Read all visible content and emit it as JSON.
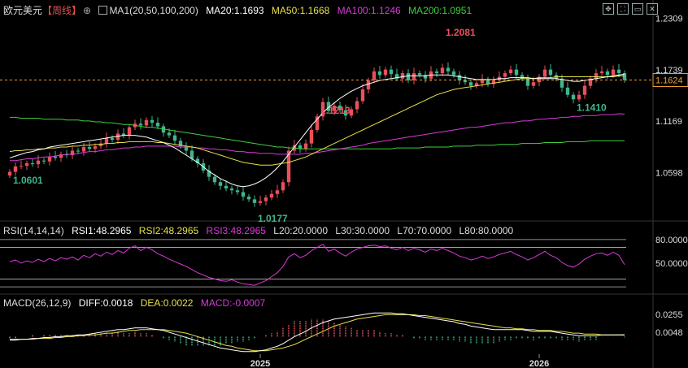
{
  "header": {
    "symbol": "欧元美元",
    "period": "【周线】",
    "ma_indicator": "MA1(20,50,100,200)",
    "ma20": "MA20:1.1693",
    "ma50": "MA50:1.1668",
    "ma100": "MA100:1.1246",
    "ma200": "MA200:1.0951"
  },
  "rsi_header": {
    "name": "RSI(14,14,14)",
    "rsi1": "RSI1:48.2965",
    "rsi2": "RSI2:48.2965",
    "rsi3": "RSI3:48.2965",
    "l20": "L20:20.0000",
    "l30": "L30:30.0000",
    "l70": "L70:70.0000",
    "l80": "L80:80.0000"
  },
  "macd_header": {
    "name": "MACD(26,12,9)",
    "diff": "DIFF:0.0018",
    "dea": "DEA:0.0022",
    "macd": "MACD:-0.0007"
  },
  "colors": {
    "up": "#e8505b",
    "down": "#3fb68b",
    "ma20": "#ffffff",
    "ma50": "#e6e04a",
    "ma100": "#d93ad9",
    "ma200": "#3ecf3e",
    "rsi": "#d93ad9",
    "diff": "#ffffff",
    "dea": "#e6e04a",
    "current_price": "#f0a030"
  },
  "chart_data": [
    {
      "type": "candlestick",
      "title": "欧元美元【周线】",
      "y_ticks": [
        1.2309,
        1.1739,
        1.1169,
        1.0598
      ],
      "ylim": [
        1.015,
        1.235
      ],
      "x_ticks": [
        "2025",
        "2026"
      ],
      "current_price": 1.1624,
      "annotations": [
        {
          "text": "1.2081",
          "value": 1.2081,
          "kind": "high"
        },
        {
          "text": "1.1213",
          "value": 1.1213,
          "kind": "high"
        },
        {
          "text": "1.1410",
          "value": 1.141,
          "kind": "low"
        },
        {
          "text": "1.0601",
          "value": 1.0601,
          "kind": "low"
        },
        {
          "text": "1.0177",
          "value": 1.0177,
          "kind": "low"
        }
      ],
      "close": [
        1.0605,
        1.0665,
        1.0672,
        1.07,
        1.069,
        1.073,
        1.072,
        1.0775,
        1.076,
        1.08,
        1.079,
        1.084,
        1.083,
        1.088,
        1.086,
        1.089,
        1.092,
        1.098,
        1.096,
        1.103,
        1.101,
        1.11,
        1.114,
        1.112,
        1.118,
        1.115,
        1.111,
        1.104,
        1.101,
        1.095,
        1.089,
        1.084,
        1.075,
        1.07,
        1.062,
        1.055,
        1.049,
        1.045,
        1.042,
        1.04,
        1.038,
        1.033,
        1.03,
        1.026,
        1.028,
        1.032,
        1.036,
        1.04,
        1.049,
        1.084,
        1.09,
        1.086,
        1.092,
        1.107,
        1.122,
        1.138,
        1.128,
        1.134,
        1.129,
        1.123,
        1.13,
        1.139,
        1.152,
        1.162,
        1.172,
        1.168,
        1.174,
        1.169,
        1.164,
        1.17,
        1.162,
        1.17,
        1.168,
        1.164,
        1.172,
        1.17,
        1.176,
        1.172,
        1.168,
        1.162,
        1.16,
        1.156,
        1.159,
        1.163,
        1.158,
        1.162,
        1.166,
        1.17,
        1.174,
        1.168,
        1.164,
        1.156,
        1.16,
        1.166,
        1.174,
        1.168,
        1.164,
        1.154,
        1.146,
        1.141,
        1.146,
        1.156,
        1.164,
        1.17,
        1.172,
        1.168,
        1.174,
        1.17,
        1.1624
      ],
      "ma20": [
        1.076,
        1.078,
        1.08,
        1.082,
        1.083,
        1.085,
        1.086,
        1.088,
        1.089,
        1.09,
        1.091,
        1.092,
        1.093,
        1.094,
        1.095,
        1.096,
        1.097,
        1.098,
        1.099,
        1.1,
        1.101,
        1.101,
        1.101,
        1.1,
        1.099,
        1.097,
        1.095,
        1.093,
        1.09,
        1.087,
        1.083,
        1.079,
        1.075,
        1.071,
        1.066,
        1.061,
        1.057,
        1.053,
        1.05,
        1.047,
        1.045,
        1.044,
        1.045,
        1.047,
        1.05,
        1.054,
        1.059,
        1.065,
        1.072,
        1.08,
        1.088,
        1.096,
        1.104,
        1.112,
        1.119,
        1.126,
        1.132,
        1.137,
        1.142,
        1.146,
        1.15,
        1.153,
        1.156,
        1.158,
        1.16,
        1.162,
        1.163,
        1.164,
        1.165,
        1.166,
        1.167,
        1.167,
        1.167,
        1.167,
        1.168,
        1.168,
        1.168,
        1.168,
        1.167,
        1.166,
        1.165,
        1.164,
        1.163,
        1.163,
        1.163,
        1.163,
        1.164,
        1.164,
        1.165,
        1.165,
        1.165,
        1.165,
        1.164,
        1.164,
        1.164,
        1.164,
        1.164,
        1.163,
        1.162,
        1.161,
        1.161,
        1.162,
        1.163,
        1.164,
        1.165,
        1.166,
        1.167,
        1.168,
        1.169
      ],
      "ma50": [
        1.083,
        1.084,
        1.084,
        1.085,
        1.085,
        1.086,
        1.086,
        1.087,
        1.087,
        1.088,
        1.088,
        1.089,
        1.089,
        1.09,
        1.09,
        1.091,
        1.091,
        1.092,
        1.092,
        1.093,
        1.093,
        1.094,
        1.094,
        1.094,
        1.094,
        1.094,
        1.093,
        1.093,
        1.092,
        1.091,
        1.09,
        1.089,
        1.088,
        1.087,
        1.085,
        1.083,
        1.081,
        1.079,
        1.077,
        1.075,
        1.073,
        1.071,
        1.07,
        1.069,
        1.068,
        1.068,
        1.068,
        1.069,
        1.07,
        1.071,
        1.073,
        1.075,
        1.077,
        1.08,
        1.083,
        1.086,
        1.089,
        1.092,
        1.095,
        1.098,
        1.101,
        1.104,
        1.107,
        1.11,
        1.113,
        1.116,
        1.119,
        1.122,
        1.125,
        1.128,
        1.131,
        1.134,
        1.137,
        1.14,
        1.143,
        1.146,
        1.148,
        1.15,
        1.152,
        1.153,
        1.154,
        1.155,
        1.156,
        1.157,
        1.158,
        1.159,
        1.16,
        1.161,
        1.162,
        1.163,
        1.164,
        1.164,
        1.164,
        1.165,
        1.165,
        1.165,
        1.166,
        1.166,
        1.166,
        1.166,
        1.166,
        1.166,
        1.166,
        1.166,
        1.166,
        1.166,
        1.166,
        1.167,
        1.1668
      ],
      "ma100": [
        1.073,
        1.073,
        1.074,
        1.075,
        1.075,
        1.076,
        1.077,
        1.077,
        1.078,
        1.079,
        1.08,
        1.08,
        1.081,
        1.082,
        1.083,
        1.083,
        1.084,
        1.085,
        1.085,
        1.086,
        1.087,
        1.087,
        1.088,
        1.088,
        1.089,
        1.089,
        1.089,
        1.089,
        1.089,
        1.089,
        1.088,
        1.088,
        1.088,
        1.087,
        1.087,
        1.086,
        1.086,
        1.085,
        1.085,
        1.084,
        1.083,
        1.083,
        1.082,
        1.082,
        1.081,
        1.081,
        1.081,
        1.08,
        1.08,
        1.08,
        1.08,
        1.08,
        1.081,
        1.081,
        1.082,
        1.083,
        1.084,
        1.085,
        1.086,
        1.087,
        1.088,
        1.089,
        1.09,
        1.092,
        1.093,
        1.094,
        1.095,
        1.096,
        1.097,
        1.098,
        1.099,
        1.1,
        1.101,
        1.102,
        1.103,
        1.104,
        1.105,
        1.106,
        1.107,
        1.108,
        1.109,
        1.11,
        1.11,
        1.111,
        1.112,
        1.113,
        1.114,
        1.115,
        1.115,
        1.116,
        1.117,
        1.117,
        1.118,
        1.119,
        1.119,
        1.12,
        1.12,
        1.121,
        1.121,
        1.122,
        1.122,
        1.123,
        1.123,
        1.123,
        1.124,
        1.124,
        1.124,
        1.125,
        1.1246
      ],
      "ma200": [
        1.121,
        1.121,
        1.12,
        1.12,
        1.12,
        1.12,
        1.119,
        1.119,
        1.119,
        1.119,
        1.118,
        1.118,
        1.118,
        1.117,
        1.117,
        1.116,
        1.116,
        1.115,
        1.115,
        1.114,
        1.113,
        1.113,
        1.112,
        1.111,
        1.11,
        1.11,
        1.109,
        1.108,
        1.107,
        1.106,
        1.105,
        1.104,
        1.103,
        1.102,
        1.101,
        1.1,
        1.099,
        1.098,
        1.097,
        1.096,
        1.095,
        1.094,
        1.093,
        1.092,
        1.091,
        1.09,
        1.089,
        1.088,
        1.088,
        1.087,
        1.087,
        1.086,
        1.086,
        1.086,
        1.086,
        1.086,
        1.086,
        1.086,
        1.086,
        1.086,
        1.086,
        1.086,
        1.086,
        1.086,
        1.086,
        1.086,
        1.086,
        1.086,
        1.087,
        1.087,
        1.087,
        1.087,
        1.087,
        1.088,
        1.088,
        1.088,
        1.088,
        1.088,
        1.089,
        1.089,
        1.089,
        1.089,
        1.09,
        1.09,
        1.09,
        1.09,
        1.091,
        1.091,
        1.091,
        1.091,
        1.092,
        1.092,
        1.092,
        1.092,
        1.093,
        1.093,
        1.093,
        1.093,
        1.094,
        1.094,
        1.094,
        1.094,
        1.095,
        1.095,
        1.095,
        1.095,
        1.095,
        1.095,
        1.0951
      ]
    },
    {
      "type": "line",
      "title": "RSI(14,14,14)",
      "y_ticks": [
        80.0,
        50.0
      ],
      "ylim": [
        15,
        85
      ],
      "reference_lines": [
        20,
        30,
        70,
        80
      ],
      "rsi": [
        52,
        54,
        50,
        53,
        51,
        55,
        52,
        56,
        53,
        57,
        55,
        58,
        54,
        60,
        57,
        62,
        59,
        64,
        61,
        66,
        63,
        69,
        72,
        66,
        70,
        67,
        62,
        59,
        55,
        52,
        49,
        46,
        42,
        38,
        35,
        32,
        30,
        28,
        27,
        29,
        26,
        24,
        23,
        22,
        25,
        28,
        33,
        38,
        46,
        58,
        62,
        57,
        60,
        66,
        70,
        74,
        65,
        68,
        63,
        59,
        64,
        68,
        70,
        72,
        73,
        71,
        72,
        69,
        67,
        70,
        66,
        69,
        67,
        64,
        68,
        66,
        69,
        66,
        63,
        59,
        57,
        54,
        56,
        59,
        56,
        58,
        61,
        63,
        65,
        61,
        58,
        54,
        57,
        61,
        65,
        60,
        57,
        51,
        47,
        45,
        49,
        55,
        59,
        62,
        63,
        60,
        64,
        60,
        48.3
      ]
    },
    {
      "type": "bar+line",
      "title": "MACD(26,12,9)",
      "y_ticks": [
        0.0255,
        0.0048
      ],
      "ylim": [
        -0.02,
        0.03
      ],
      "x_ticks": [
        "2025",
        "2026"
      ],
      "diff": [
        -0.004,
        -0.004,
        -0.003,
        -0.003,
        -0.002,
        -0.002,
        -0.001,
        -0.001,
        0.0,
        0.0,
        0.001,
        0.001,
        0.002,
        0.002,
        0.003,
        0.004,
        0.005,
        0.006,
        0.007,
        0.008,
        0.008,
        0.009,
        0.01,
        0.01,
        0.01,
        0.009,
        0.008,
        0.007,
        0.005,
        0.003,
        0.001,
        -0.001,
        -0.003,
        -0.005,
        -0.007,
        -0.009,
        -0.011,
        -0.013,
        -0.014,
        -0.015,
        -0.016,
        -0.017,
        -0.017,
        -0.017,
        -0.016,
        -0.015,
        -0.013,
        -0.011,
        -0.008,
        -0.004,
        0.0,
        0.003,
        0.006,
        0.01,
        0.013,
        0.016,
        0.018,
        0.02,
        0.021,
        0.022,
        0.023,
        0.024,
        0.025,
        0.026,
        0.027,
        0.027,
        0.027,
        0.027,
        0.026,
        0.026,
        0.025,
        0.024,
        0.023,
        0.022,
        0.021,
        0.02,
        0.019,
        0.018,
        0.017,
        0.015,
        0.014,
        0.012,
        0.011,
        0.01,
        0.009,
        0.008,
        0.008,
        0.008,
        0.008,
        0.008,
        0.008,
        0.007,
        0.006,
        0.006,
        0.006,
        0.006,
        0.005,
        0.004,
        0.003,
        0.002,
        0.001,
        0.001,
        0.001,
        0.001,
        0.002,
        0.002,
        0.002,
        0.002,
        0.0018
      ],
      "dea": [
        -0.003,
        -0.003,
        -0.003,
        -0.003,
        -0.003,
        -0.002,
        -0.002,
        -0.002,
        -0.001,
        -0.001,
        0.0,
        0.0,
        0.001,
        0.001,
        0.002,
        0.002,
        0.003,
        0.004,
        0.004,
        0.005,
        0.006,
        0.007,
        0.007,
        0.008,
        0.008,
        0.008,
        0.008,
        0.008,
        0.007,
        0.006,
        0.005,
        0.004,
        0.002,
        0.0,
        -0.002,
        -0.004,
        -0.006,
        -0.008,
        -0.01,
        -0.011,
        -0.013,
        -0.014,
        -0.015,
        -0.016,
        -0.016,
        -0.016,
        -0.015,
        -0.014,
        -0.013,
        -0.011,
        -0.009,
        -0.006,
        -0.003,
        0.0,
        0.003,
        0.006,
        0.009,
        0.012,
        0.014,
        0.016,
        0.018,
        0.02,
        0.021,
        0.022,
        0.023,
        0.024,
        0.025,
        0.025,
        0.025,
        0.025,
        0.025,
        0.025,
        0.024,
        0.024,
        0.023,
        0.022,
        0.021,
        0.02,
        0.019,
        0.018,
        0.017,
        0.016,
        0.015,
        0.014,
        0.013,
        0.012,
        0.011,
        0.01,
        0.01,
        0.009,
        0.009,
        0.008,
        0.008,
        0.007,
        0.007,
        0.007,
        0.006,
        0.006,
        0.005,
        0.004,
        0.004,
        0.003,
        0.003,
        0.003,
        0.002,
        0.002,
        0.002,
        0.002,
        0.0022
      ]
    }
  ]
}
